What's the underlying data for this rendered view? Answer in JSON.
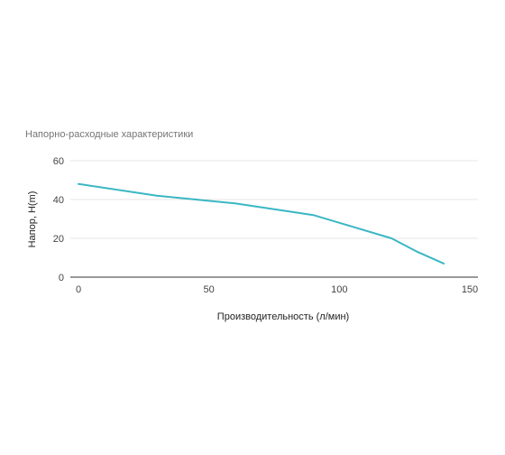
{
  "chart_data": {
    "type": "line",
    "title": "Напорно-расходные характеристики",
    "xlabel": "Производительность (л/мин)",
    "ylabel": "Напор, H(m)",
    "xlim": [
      0,
      150
    ],
    "ylim": [
      0,
      60
    ],
    "xticks": [
      0,
      50,
      100,
      150
    ],
    "yticks": [
      0,
      20,
      40,
      60
    ],
    "grid": true,
    "legend": "none",
    "series": [
      {
        "color": "#3ab7c4",
        "x": [
          0,
          30,
          60,
          90,
          105,
          120,
          130,
          140
        ],
        "y": [
          48,
          42,
          38,
          32,
          26,
          20,
          13,
          7
        ]
      }
    ]
  }
}
